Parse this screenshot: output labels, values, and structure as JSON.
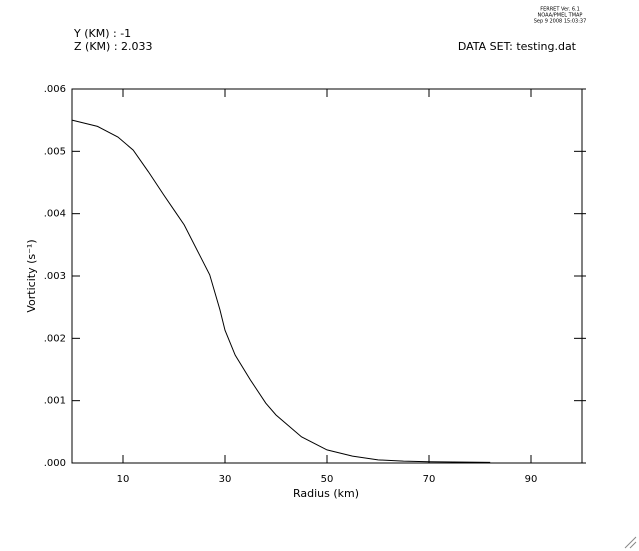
{
  "chart_data": {
    "type": "line",
    "header": {
      "credit": [
        "FERRET Ver. 6.1",
        "NOAA/PMEL TMAP",
        "Sep  9 2008 15:03:37"
      ],
      "info": [
        "Y (KM) : -1",
        "Z (KM) : 2.033"
      ],
      "dataset": "DATA SET: testing.dat"
    },
    "xlabel": "Radius (km)",
    "ylabel": "Vorticity (s⁻¹)",
    "x": [
      0,
      5,
      9,
      12,
      15,
      18,
      20,
      22,
      25,
      27,
      29,
      30,
      32,
      35,
      38,
      40,
      45,
      50,
      55,
      60,
      65,
      70,
      82
    ],
    "series": [
      {
        "color": "#000000",
        "values": [
          0.0055,
          0.0054,
          0.00523,
          0.00502,
          0.00467,
          0.0043,
          0.00406,
          0.00382,
          0.00334,
          0.00302,
          0.00246,
          0.00213,
          0.00173,
          0.00133,
          0.00096,
          0.00077,
          0.00042,
          0.00021,
          0.00011,
          5e-05,
          3e-05,
          2e-05,
          1e-05
        ]
      }
    ],
    "xlim": [
      0,
      100
    ],
    "xticks": [
      10,
      30,
      50,
      70,
      90
    ],
    "ylim": [
      0,
      0.006
    ],
    "yticks": [
      {
        "value": 0,
        "label": ".000"
      },
      {
        "value": 0.001,
        "label": ".001"
      },
      {
        "value": 0.002,
        "label": ".002"
      },
      {
        "value": 0.003,
        "label": ".003"
      },
      {
        "value": 0.004,
        "label": ".004"
      },
      {
        "value": 0.005,
        "label": ".005"
      },
      {
        "value": 0.006,
        "label": ".006"
      }
    ]
  }
}
